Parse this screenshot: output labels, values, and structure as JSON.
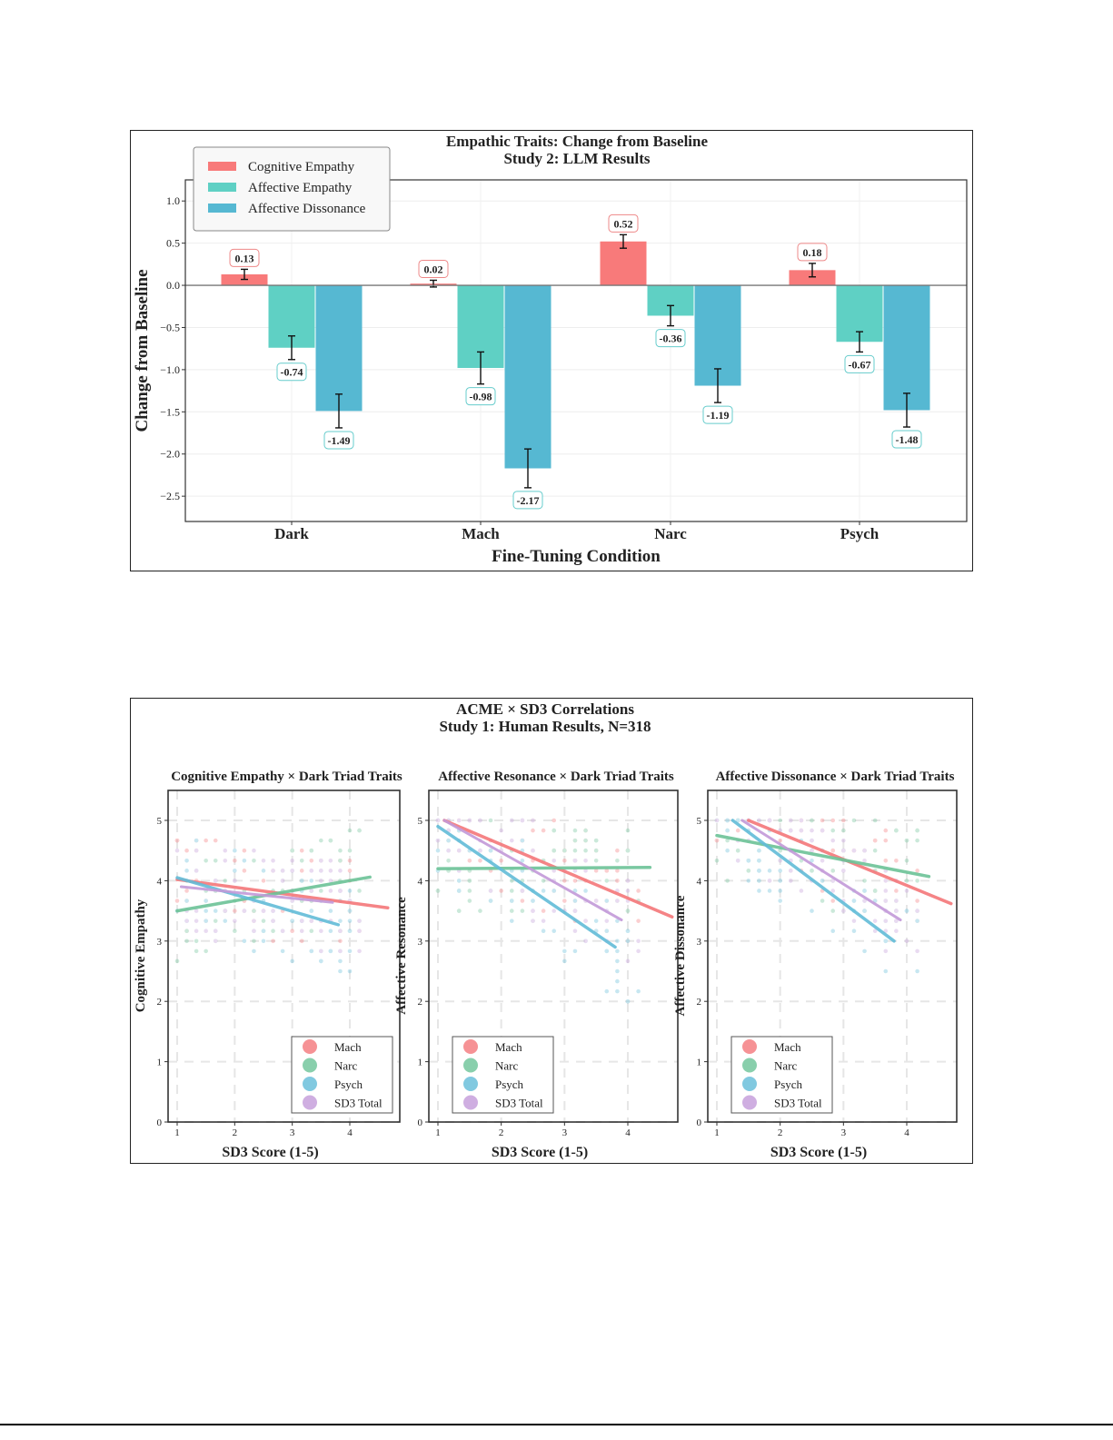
{
  "chart_data": [
    {
      "type": "bar",
      "title": "Empathic Traits: Change from Baseline",
      "subtitle": "Study 2: LLM Results",
      "xlabel": "Fine-Tuning Condition",
      "ylabel": "Change from Baseline",
      "ylim": [
        -2.8,
        1.25
      ],
      "yticks": [
        1.0,
        0.5,
        0.0,
        -0.5,
        -1.0,
        -1.5,
        -2.0,
        -2.5
      ],
      "ytick_labels": [
        "1.0",
        "0.5",
        "0.0",
        "−0.5",
        "−1.0",
        "−1.5",
        "−2.0",
        "−2.5"
      ],
      "grid": true,
      "legend_position": "top-left",
      "categories": [
        "Dark",
        "Mach",
        "Narc",
        "Psych"
      ],
      "series": [
        {
          "name": "Cognitive Empathy",
          "color": "#f87a7a",
          "values": [
            0.13,
            0.02,
            0.52,
            0.18
          ],
          "errors": [
            0.06,
            0.04,
            0.08,
            0.08
          ],
          "labels": [
            "0.13",
            "0.02",
            "0.52",
            "0.18"
          ]
        },
        {
          "name": "Affective Empathy",
          "color": "#5fd0c4",
          "values": [
            -0.74,
            -0.98,
            -0.36,
            -0.67
          ],
          "errors": [
            0.14,
            0.19,
            0.12,
            0.12
          ],
          "labels": [
            "-0.74",
            "-0.98",
            "-0.36",
            "-0.67"
          ]
        },
        {
          "name": "Affective Dissonance",
          "color": "#56b8d2",
          "values": [
            -1.49,
            -2.17,
            -1.19,
            -1.48
          ],
          "errors": [
            0.2,
            0.23,
            0.2,
            0.2
          ],
          "labels": [
            "-1.49",
            "-2.17",
            "-1.19",
            "-1.48"
          ]
        }
      ]
    },
    {
      "type": "scatter",
      "title": "ACME × SD3 Correlations",
      "subtitle": "Study 1: Human Results, N=318",
      "series_legend": [
        {
          "name": "Mach",
          "color": "#f4777a"
        },
        {
          "name": "Narc",
          "color": "#6cc397"
        },
        {
          "name": "Psych",
          "color": "#62bcd8"
        },
        {
          "name": "SD3 Total",
          "color": "#c39ad9"
        }
      ],
      "panels": [
        {
          "title": "Cognitive Empathy × Dark Triad Traits",
          "xlabel": "SD3 Score (1-5)",
          "ylabel": "Cognitive Empathy",
          "xticks": [
            1,
            2,
            3,
            4
          ],
          "yticks": [
            0,
            1,
            2,
            3,
            4,
            5
          ],
          "xlim": [
            0.85,
            4.9
          ],
          "ylim": [
            0,
            5.5
          ],
          "legend_position": "bottom-right",
          "grid": true,
          "fit_lines": [
            {
              "name": "Mach",
              "x": [
                1.0,
                4.66
              ],
              "y": [
                4.02,
                3.55
              ]
            },
            {
              "name": "Narc",
              "x": [
                1.0,
                4.35
              ],
              "y": [
                3.5,
                4.06
              ]
            },
            {
              "name": "Psych",
              "x": [
                1.0,
                3.8
              ],
              "y": [
                4.05,
                3.27
              ]
            },
            {
              "name": "SD3 Total",
              "x": [
                1.07,
                3.7
              ],
              "y": [
                3.9,
                3.64
              ]
            }
          ]
        },
        {
          "title": "Affective Resonance × Dark Triad Traits",
          "xlabel": "SD3 Score (1-5)",
          "ylabel": "Affective Resonance",
          "xticks": [
            1,
            2,
            3,
            4
          ],
          "yticks": [
            0,
            1,
            2,
            3,
            4,
            5
          ],
          "xlim": [
            0.85,
            4.9
          ],
          "ylim": [
            0,
            5.5
          ],
          "legend_position": "bottom-left",
          "grid": true,
          "fit_lines": [
            {
              "name": "Mach",
              "x": [
                1.1,
                4.7
              ],
              "y": [
                5.0,
                3.4
              ]
            },
            {
              "name": "Narc",
              "x": [
                1.0,
                4.35
              ],
              "y": [
                4.2,
                4.22
              ]
            },
            {
              "name": "Psych",
              "x": [
                1.0,
                3.8
              ],
              "y": [
                4.9,
                2.9
              ]
            },
            {
              "name": "SD3 Total",
              "x": [
                1.1,
                3.9
              ],
              "y": [
                5.0,
                3.35
              ]
            }
          ]
        },
        {
          "title": "Affective Dissonance × Dark Triad Traits",
          "xlabel": "SD3 Score (1-5)",
          "ylabel": "Affective Dissonance",
          "xticks": [
            1,
            2,
            3,
            4
          ],
          "yticks": [
            0,
            1,
            2,
            3,
            4,
            5
          ],
          "xlim": [
            0.85,
            4.9
          ],
          "ylim": [
            0,
            5.5
          ],
          "legend_position": "bottom-left",
          "grid": true,
          "fit_lines": [
            {
              "name": "Mach",
              "x": [
                1.5,
                4.7
              ],
              "y": [
                5.0,
                3.62
              ]
            },
            {
              "name": "Narc",
              "x": [
                1.0,
                4.35
              ],
              "y": [
                4.75,
                4.07
              ]
            },
            {
              "name": "Psych",
              "x": [
                1.25,
                3.8
              ],
              "y": [
                5.0,
                3.0
              ]
            },
            {
              "name": "SD3 Total",
              "x": [
                1.4,
                3.9
              ],
              "y": [
                5.0,
                3.35
              ]
            }
          ]
        }
      ]
    }
  ]
}
